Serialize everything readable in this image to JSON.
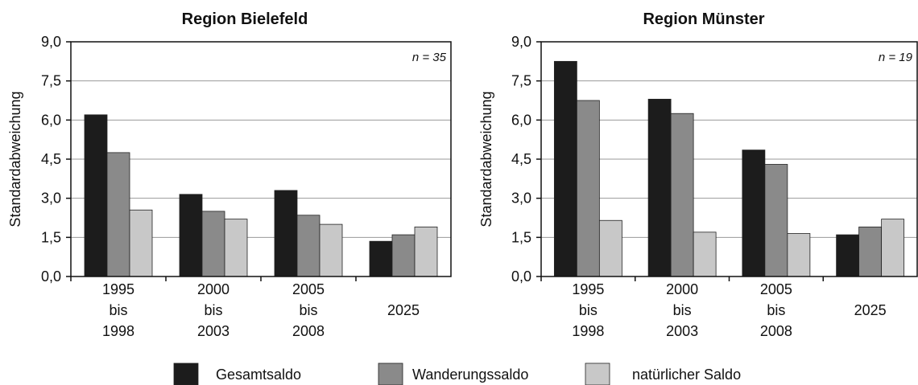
{
  "chart_data": [
    {
      "type": "bar",
      "title": "Region Bielefeld",
      "y_label": "Standardabweichung",
      "annotation": "n = 35",
      "categories": [
        "1995\nbis\n1998",
        "2000\nbis\n2003",
        "2005\nbis\n2008",
        "2025"
      ],
      "series": [
        {
          "name": "Gesamtsaldo",
          "color": "#1c1c1c",
          "values": [
            6.2,
            3.15,
            3.3,
            1.35
          ]
        },
        {
          "name": "Wanderungssaldo",
          "color": "#8a8a8a",
          "values": [
            4.75,
            2.5,
            2.35,
            1.6
          ]
        },
        {
          "name": "natürlicher Saldo",
          "color": "#c8c8c8",
          "values": [
            2.55,
            2.2,
            2.0,
            1.9
          ]
        }
      ],
      "ylim": [
        0,
        9
      ],
      "yticks": [
        {
          "value": 0,
          "label": "0,0"
        },
        {
          "value": 1.5,
          "label": "1,5"
        },
        {
          "value": 3,
          "label": "3,0"
        },
        {
          "value": 4.5,
          "label": "4,5"
        },
        {
          "value": 6,
          "label": "6,0"
        },
        {
          "value": 7.5,
          "label": "7,5"
        },
        {
          "value": 9,
          "label": "9,0"
        }
      ],
      "grid": true
    },
    {
      "type": "bar",
      "title": "Region Münster",
      "y_label": "Standardabweichung",
      "annotation": "n = 19",
      "categories": [
        "1995\nbis\n1998",
        "2000\nbis\n2003",
        "2005\nbis\n2008",
        "2025"
      ],
      "series": [
        {
          "color": "#1c1c1c",
          "values": [
            8.25,
            6.8,
            4.85,
            1.6
          ]
        },
        {
          "color": "#8a8a8a",
          "values": [
            6.75,
            6.25,
            4.3,
            1.9
          ]
        },
        {
          "color": "#c8c8c8",
          "values": [
            2.15,
            1.7,
            1.65,
            2.2
          ]
        }
      ],
      "ylim": [
        0,
        9
      ],
      "yticks": [
        {
          "value": 0,
          "label": "0,0"
        },
        {
          "value": 1.5,
          "label": "1,5"
        },
        {
          "value": 3,
          "label": "3,0"
        },
        {
          "value": 4.5,
          "label": "4,5"
        },
        {
          "value": 6,
          "label": "6,0"
        },
        {
          "value": 7.5,
          "label": "7,5"
        },
        {
          "value": 9,
          "label": "9,0"
        }
      ],
      "grid": true
    }
  ]
}
